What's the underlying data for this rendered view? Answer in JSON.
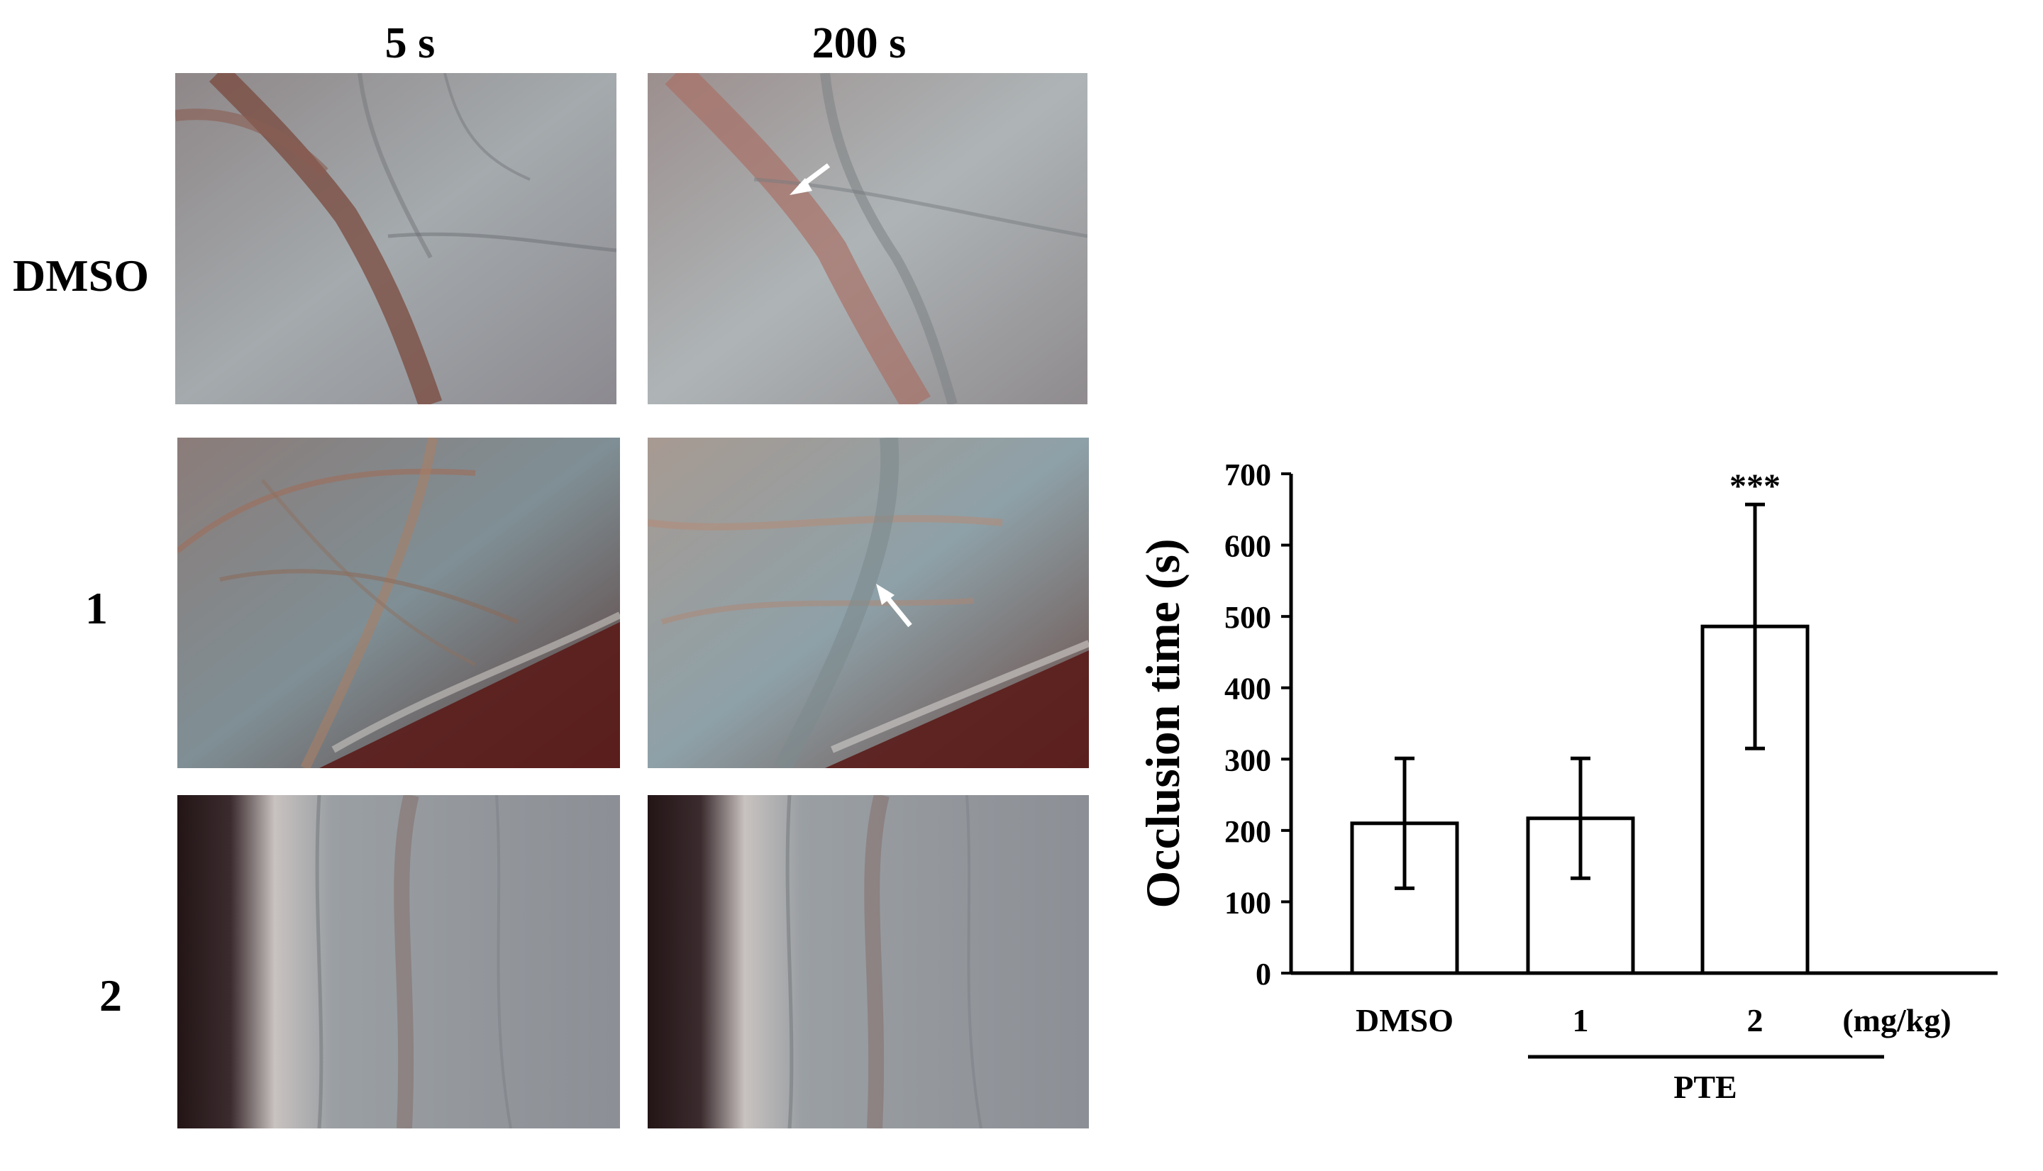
{
  "figure": {
    "column_headers": [
      "5 s",
      "200 s"
    ],
    "row_headers": [
      "DMSO",
      "1",
      "2"
    ],
    "micrographs": [
      {
        "row": "DMSO",
        "column": "5 s",
        "arrow": false
      },
      {
        "row": "DMSO",
        "column": "200 s",
        "arrow": true
      },
      {
        "row": "1",
        "column": "5 s",
        "arrow": false
      },
      {
        "row": "1",
        "column": "200 s",
        "arrow": true
      },
      {
        "row": "2",
        "column": "5 s",
        "arrow": false
      },
      {
        "row": "2",
        "column": "200 s",
        "arrow": false
      }
    ]
  },
  "chart_data": {
    "type": "bar",
    "categories": [
      "DMSO",
      "1",
      "2"
    ],
    "values": [
      210,
      217,
      486
    ],
    "errors": [
      91,
      84,
      171
    ],
    "significance": [
      "",
      "",
      "***"
    ],
    "ylabel": "Occlusion time (s)",
    "units_label": "(mg/kg)",
    "group_label": "PTE",
    "group_members": [
      "1",
      "2"
    ],
    "ylim": [
      0,
      700
    ],
    "yticks": [
      0,
      100,
      200,
      300,
      400,
      500,
      600,
      700
    ],
    "grid": false,
    "legend": "none",
    "colors": {
      "bar_fill": "#ffffff",
      "bar_stroke": "#000000"
    }
  }
}
